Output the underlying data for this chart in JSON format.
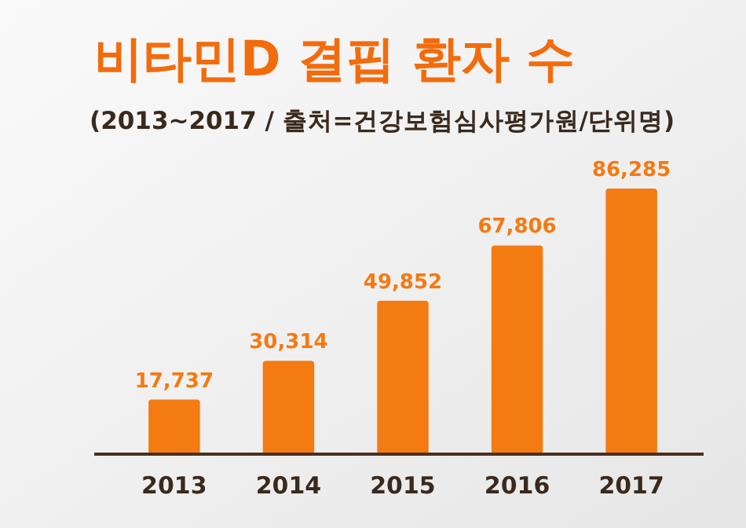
{
  "chart_data": {
    "type": "bar",
    "title": "비타민D 결핍 환자 수",
    "subtitle": "(2013~2017 / 출처=건강보험심사평가원/단위명)",
    "categories": [
      "2013",
      "2014",
      "2015",
      "2016",
      "2017"
    ],
    "values": [
      17737,
      30314,
      49852,
      67806,
      86285
    ],
    "value_labels": [
      "17,737",
      "30,314",
      "49,852",
      "67,806",
      "86,285"
    ],
    "color": "#f47a12",
    "grid": false
  }
}
